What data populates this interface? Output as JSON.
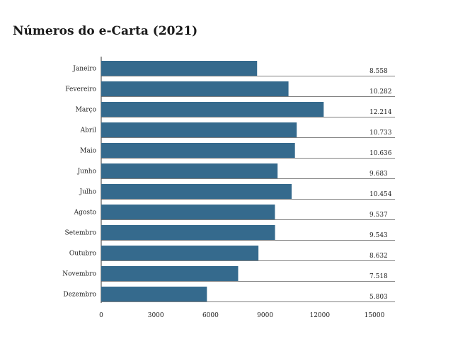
{
  "chart_data": {
    "type": "bar",
    "orientation": "horizontal",
    "title": "Números do e-Carta (2021)",
    "xlabel": "",
    "ylabel": "",
    "xlim": [
      0,
      15000
    ],
    "x_ticks": [
      "0",
      "3000",
      "6000",
      "9000",
      "12000",
      "15000"
    ],
    "x_tick_values": [
      0,
      3000,
      6000,
      9000,
      12000,
      15000
    ],
    "categories": [
      "Janeiro",
      "Fevereiro",
      "Março",
      "Abril",
      "Maio",
      "Junho",
      "Julho",
      "Agosto",
      "Setembro",
      "Outubro",
      "Novembro",
      "Dezembro"
    ],
    "values": [
      8558,
      10282,
      12214,
      10733,
      10636,
      9683,
      10454,
      9537,
      9543,
      8632,
      7518,
      5803
    ],
    "value_labels": [
      "8.558",
      "10.282",
      "12.214",
      "10.733",
      "10.636",
      "9.683",
      "10.454",
      "9.537",
      "9.543",
      "8.632",
      "7.518",
      "5.803"
    ],
    "bar_color": "#356a8d",
    "gridlines": "horizontal row separators"
  }
}
